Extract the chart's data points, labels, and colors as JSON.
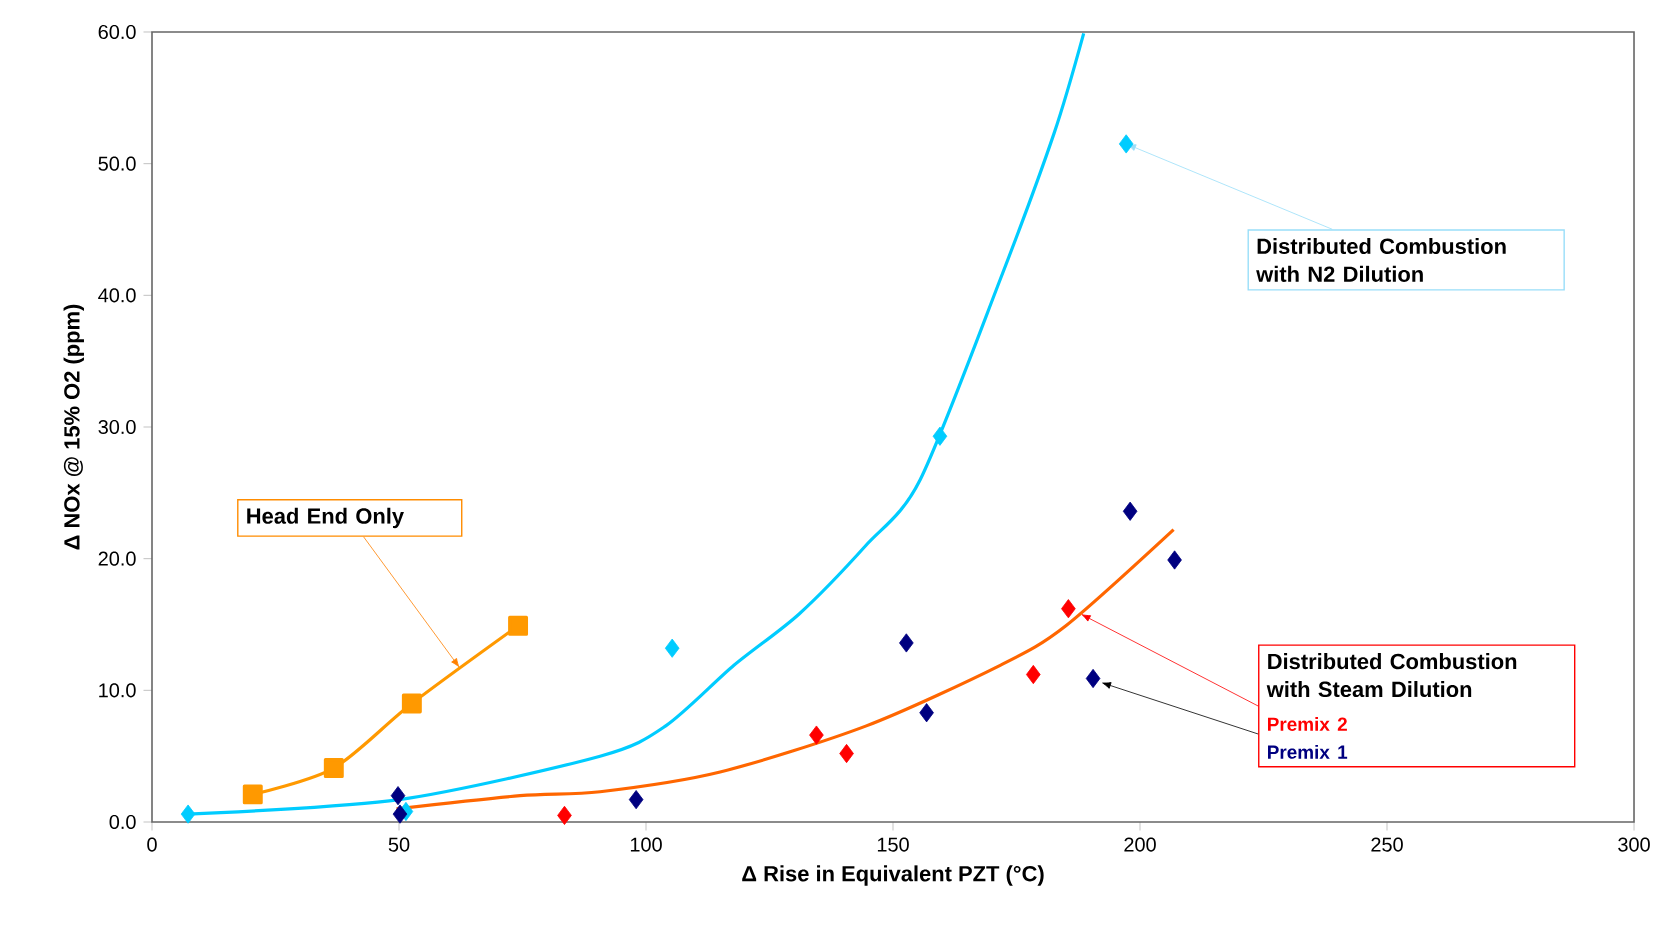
{
  "chart_data": {
    "type": "scatter",
    "xlabel": "Δ Rise in Equivalent PZT (°C)",
    "ylabel": "Δ NOx @ 15% O2 (ppm)",
    "xlim": [
      0,
      300
    ],
    "ylim": [
      0,
      60
    ],
    "xticks": [
      0,
      50,
      100,
      150,
      200,
      250,
      300
    ],
    "yticks": [
      {
        "value": 0,
        "label": "0.0"
      },
      {
        "value": 10,
        "label": "10.0"
      },
      {
        "value": 20,
        "label": "20.0"
      },
      {
        "value": 30,
        "label": "30.0"
      },
      {
        "value": 40,
        "label": "40.0"
      },
      {
        "value": 50,
        "label": "50.0"
      },
      {
        "value": 60,
        "label": "60.0"
      }
    ],
    "grid": false,
    "series": [
      {
        "type": "line",
        "marker": "square",
        "color": "#ff9900",
        "x": [
          20.4,
          36.8,
          52.6,
          74.1
        ],
        "values": [
          2.1,
          4.1,
          9.0,
          14.9
        ]
      },
      {
        "type": "line",
        "marker": "none",
        "color": "#00ccff",
        "x": [
          7.3,
          50,
          90.7,
          104,
          117.8,
          131,
          144.5,
          155.5,
          171.7,
          182.6,
          188.6
        ],
        "values": [
          0.6,
          1.7,
          5.0,
          7.3,
          11.9,
          15.8,
          21,
          26,
          41.2,
          52.3,
          59.9
        ]
      },
      {
        "type": "scatter",
        "marker": "diamond",
        "color": "#00ccff",
        "x": [
          7.3,
          51.4,
          105.3,
          159.5,
          197.2
        ],
        "values": [
          0.6,
          0.8,
          13.2,
          29.3,
          51.5
        ]
      },
      {
        "type": "line",
        "marker": "none",
        "color": "#ff6600",
        "x": [
          49.5,
          74.5,
          90.7,
          115,
          144.6,
          171.7,
          185,
          206.8
        ],
        "values": [
          1.0,
          2.0,
          2.3,
          3.8,
          7.3,
          11.9,
          14.9,
          22.2
        ]
      },
      {
        "type": "scatter",
        "marker": "diamond",
        "name": "Premix 2",
        "color": "#ff0000",
        "x": [
          83.5,
          134.5,
          140.6,
          178.4,
          185.5
        ],
        "values": [
          0.5,
          6.6,
          5.2,
          11.2,
          16.2
        ]
      },
      {
        "type": "scatter",
        "marker": "diamond",
        "name": "Premix 1",
        "color": "#000080",
        "x": [
          49.8,
          50.2,
          98,
          152.7,
          156.8,
          190.5,
          198,
          207
        ],
        "values": [
          2.0,
          0.6,
          1.7,
          13.6,
          8.3,
          10.9,
          23.6,
          19.9
        ]
      }
    ],
    "annotations": [
      {
        "text": "Head End Only",
        "x": 62.3,
        "y": 11.7
      },
      {
        "text": "Distributed Combustion with N2 Dilution",
        "x": 197.2,
        "y": 51.5
      },
      {
        "text": "Distributed Combustion with Steam Dilution",
        "x": 188,
        "y": 15.8
      }
    ]
  }
}
